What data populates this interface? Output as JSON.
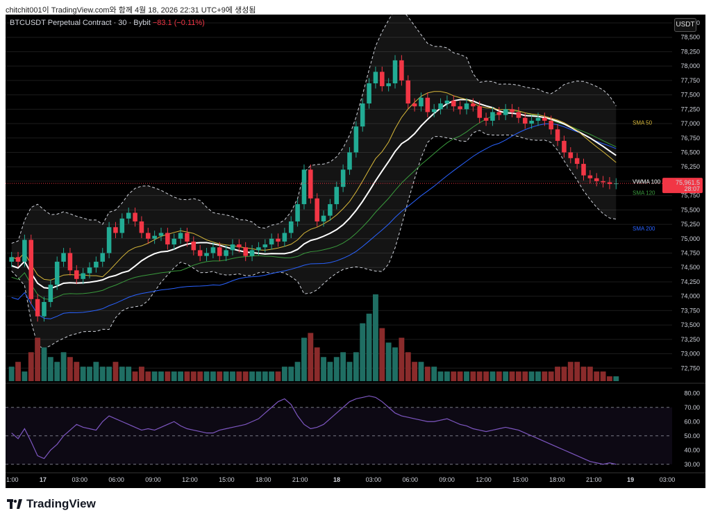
{
  "caption": "chitchit001이 TradingView.com와 함께 4월 18, 2026 22:31 UTC+9에 생성됨",
  "header": {
    "symbol": "BTCUSDT Perpetual Contract · 30 · Bybit",
    "change": "−83.1 (−0.11%)",
    "currency_button": "USDT"
  },
  "brand": {
    "logo_icon": "tradingview-logo-icon",
    "name": "TradingView"
  },
  "colors": {
    "up": "#22ab94",
    "down": "#f23645",
    "up_volume": "#1f6e63",
    "down_volume": "#8a2b2b",
    "bollinger": "#d1d4dc",
    "vwma": "#ffffff",
    "sma50": "#d9b93a",
    "sma120": "#3a9b3d",
    "sma200": "#2962ff",
    "rsi": "#7e57c2"
  },
  "chart_data": [
    {
      "type": "candlestick",
      "title": "BTCUSDT Perpetual Contract · 30 · Bybit",
      "ylim": [
        72500,
        78750
      ],
      "y_ticks": [
        "78,750",
        "78,500",
        "78,250",
        "78,000",
        "77,750",
        "77,500",
        "77,250",
        "77,000",
        "76,750",
        "76,500",
        "76,250",
        "76,000",
        "75,750",
        "75,500",
        "75,250",
        "75,000",
        "74,750",
        "74,500",
        "74,250",
        "74,000",
        "73,750",
        "73,500",
        "73,250",
        "73,000",
        "72,750"
      ],
      "x_ticks": [
        "1:00",
        "17",
        "03:00",
        "06:00",
        "09:00",
        "12:00",
        "15:00",
        "18:00",
        "21:00",
        "18",
        "03:00",
        "06:00",
        "09:00",
        "12:00",
        "15:00",
        "18:00",
        "21:00",
        "19",
        "03:00"
      ],
      "last_price": "75,961.5",
      "countdown": "28:07",
      "indicators": [
        {
          "name": "SMA 50",
          "value_level": 77020
        },
        {
          "name": "VWMA 100",
          "value_level": 75990
        },
        {
          "name": "SMA 120",
          "value_level": 75800
        },
        {
          "name": "SMA 200",
          "value_level": 75180
        }
      ],
      "closes": [
        74680,
        74600,
        74980,
        73950,
        73650,
        73900,
        74200,
        74600,
        74750,
        74450,
        74300,
        74400,
        74500,
        74600,
        74750,
        75200,
        75100,
        75350,
        75450,
        75300,
        75100,
        75000,
        75050,
        75100,
        74900,
        75000,
        75100,
        74950,
        74800,
        74700,
        74750,
        74850,
        74700,
        74800,
        74900,
        74850,
        74700,
        74800,
        74850,
        74900,
        75000,
        74950,
        75100,
        75300,
        75600,
        76200,
        75700,
        75300,
        75400,
        75600,
        75900,
        76200,
        76500,
        76950,
        77350,
        77700,
        77900,
        77650,
        77700,
        78100,
        77750,
        77350,
        77300,
        77450,
        77200,
        77250,
        77350,
        77400,
        77300,
        77250,
        77350,
        77300,
        77100,
        77050,
        77200,
        77150,
        77250,
        77200,
        77100,
        77000,
        77050,
        77100,
        77050,
        76900,
        76700,
        76500,
        76400,
        76300,
        76100,
        76050,
        76000,
        75980,
        75950,
        75961
      ]
    },
    {
      "type": "bar",
      "title": "Volume",
      "values": [
        3,
        4,
        2,
        6,
        9,
        7,
        5,
        4,
        6,
        5,
        4,
        3,
        3,
        4,
        3,
        3,
        4,
        3,
        3,
        2,
        3,
        2,
        2,
        2,
        2,
        2,
        2,
        2,
        2,
        2,
        2,
        2,
        2,
        2,
        2,
        2,
        2,
        2,
        2,
        2,
        2,
        2,
        3,
        3,
        4,
        9,
        10,
        7,
        5,
        4,
        5,
        6,
        4,
        6,
        12,
        14,
        18,
        11,
        8,
        7,
        9,
        6,
        4,
        4,
        3,
        3,
        2,
        2,
        2,
        2,
        2,
        2,
        2,
        2,
        2,
        2,
        2,
        2,
        2,
        2,
        2,
        2,
        2,
        2,
        3,
        3,
        4,
        4,
        3,
        3,
        2,
        2,
        1,
        1
      ]
    },
    {
      "type": "line",
      "title": "RSI",
      "ylim": [
        25,
        85
      ],
      "y_ticks": [
        "80.00",
        "70.00",
        "60.00",
        "50.00",
        "40.00",
        "30.00"
      ],
      "levels": [
        70,
        50,
        30
      ],
      "values": [
        52,
        48,
        55,
        46,
        36,
        34,
        40,
        44,
        50,
        54,
        58,
        56,
        55,
        54,
        60,
        64,
        62,
        60,
        58,
        56,
        54,
        55,
        54,
        56,
        58,
        60,
        57,
        55,
        54,
        53,
        52,
        52,
        54,
        55,
        56,
        57,
        58,
        60,
        62,
        66,
        70,
        74,
        76,
        72,
        64,
        58,
        55,
        56,
        58,
        62,
        66,
        70,
        74,
        76,
        77,
        78,
        77,
        74,
        70,
        66,
        64,
        63,
        62,
        61,
        60,
        60,
        61,
        62,
        60,
        58,
        57,
        55,
        54,
        53,
        54,
        55,
        56,
        55,
        54,
        52,
        50,
        48,
        46,
        44,
        42,
        40,
        38,
        36,
        34,
        32,
        31,
        30,
        31,
        30
      ]
    }
  ]
}
